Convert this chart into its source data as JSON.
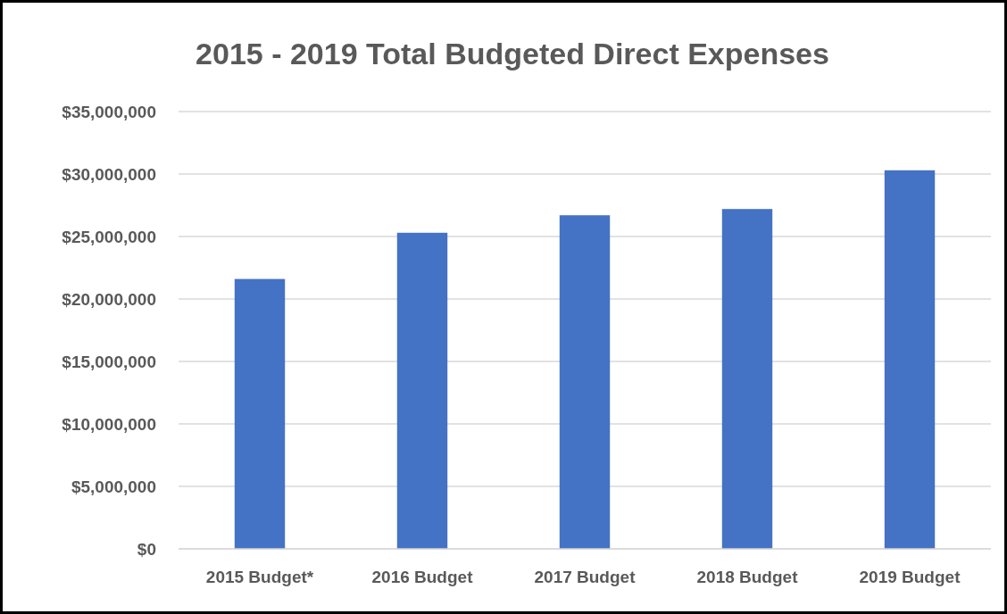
{
  "chart_data": {
    "type": "bar",
    "title": "2015 - 2019 Total Budgeted Direct Expenses",
    "categories": [
      "2015 Budget*",
      "2016 Budget",
      "2017 Budget",
      "2018 Budget",
      "2019 Budget"
    ],
    "values": [
      21600000,
      25300000,
      26700000,
      27200000,
      30300000
    ],
    "color": "#4472c4",
    "ylim": [
      0,
      35000000
    ],
    "yticks": [
      {
        "value": 0,
        "label": "$0"
      },
      {
        "value": 5000000,
        "label": "$5,000,000"
      },
      {
        "value": 10000000,
        "label": "$10,000,000"
      },
      {
        "value": 15000000,
        "label": "$15,000,000"
      },
      {
        "value": 20000000,
        "label": "$20,000,000"
      },
      {
        "value": 25000000,
        "label": "$25,000,000"
      },
      {
        "value": 30000000,
        "label": "$30,000,000"
      },
      {
        "value": 35000000,
        "label": "$35,000,000"
      }
    ],
    "grid": "y"
  }
}
